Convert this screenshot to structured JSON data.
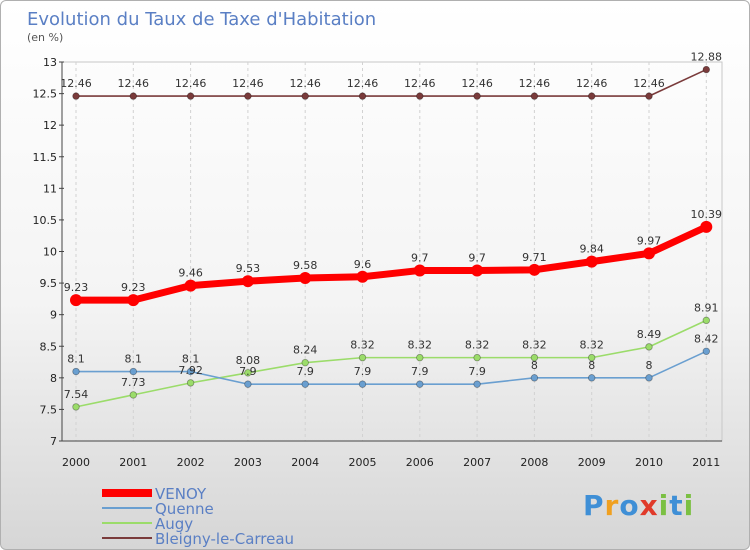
{
  "chart_data": {
    "type": "line",
    "title": "Evolution du Taux de Taxe d'Habitation",
    "unit_label": "(en %)",
    "x": [
      "2000",
      "2001",
      "2002",
      "2003",
      "2004",
      "2005",
      "2006",
      "2007",
      "2008",
      "2009",
      "2010",
      "2011"
    ],
    "ylim": [
      7,
      13
    ],
    "yticks": [
      "7",
      "7.5",
      "8",
      "8.5",
      "9",
      "9.5",
      "10",
      "10.5",
      "11",
      "11.5",
      "12",
      "12.5",
      "13"
    ],
    "grid": "vertical",
    "legend_position": "bottom-left",
    "series": [
      {
        "name": "VENOY",
        "color": "#ff0000",
        "values": [
          9.23,
          9.23,
          9.46,
          9.53,
          9.58,
          9.6,
          9.7,
          9.7,
          9.71,
          9.84,
          9.97,
          10.39
        ]
      },
      {
        "name": "Quenne",
        "color": "#6a9fd0",
        "values": [
          8.1,
          8.1,
          8.1,
          7.9,
          7.9,
          7.9,
          7.9,
          7.9,
          8,
          8,
          8,
          8.42
        ]
      },
      {
        "name": "Augy",
        "color": "#9bdc6a",
        "values": [
          7.54,
          7.73,
          7.92,
          8.08,
          8.24,
          8.32,
          8.32,
          8.32,
          8.32,
          8.32,
          8.49,
          8.91
        ]
      },
      {
        "name": "Bleigny-le-Carreau",
        "color": "#7a3b3b",
        "values": [
          12.46,
          12.46,
          12.46,
          12.46,
          12.46,
          12.46,
          12.46,
          12.46,
          12.46,
          12.46,
          12.46,
          12.88
        ]
      }
    ]
  },
  "logo": {
    "text": "Proxiti",
    "letters": [
      "P",
      "r",
      "o",
      "x",
      "i",
      "t",
      "i"
    ],
    "colors": [
      "#3f8fd6",
      "#f0a020",
      "#3f8fd6",
      "#e03a2a",
      "#7bc043",
      "#3f8fd6",
      "#7bc043"
    ]
  }
}
